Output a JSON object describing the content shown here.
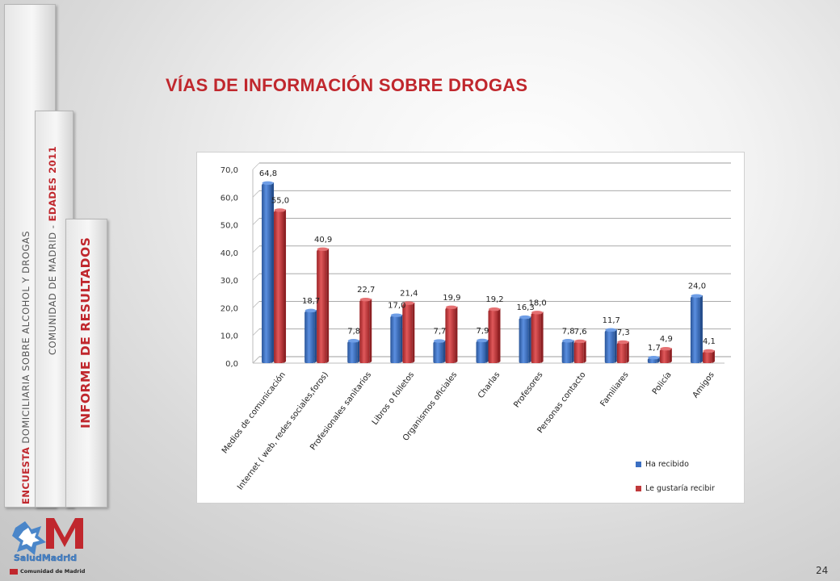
{
  "sidebar": {
    "tab1": {
      "part1": "ENCUESTA",
      "part2": "DOMICILIARIA SOBRE ALCOHOL Y DROGAS"
    },
    "tab2": {
      "part1": "COMUNIDAD DE MADRID - ",
      "part2": "EDADES 2011"
    },
    "tab3": {
      "text": "INFORME DE RESULTADOS"
    }
  },
  "slide_title": "VÍAS DE INFORMACIÓN SOBRE DROGAS",
  "logo": {
    "text": "SaludMadrid",
    "subtitle": "Comunidad de Madrid"
  },
  "page_number": "24",
  "colors": {
    "accent": "#c0272d",
    "series1": "#3b6fc2",
    "series2": "#c0393b"
  },
  "chart_data": {
    "type": "bar",
    "title": "",
    "xlabel": "",
    "ylabel": "",
    "ylim": [
      0,
      70
    ],
    "yticks": [
      "0,0",
      "10,0",
      "20,0",
      "30,0",
      "40,0",
      "50,0",
      "60,0",
      "70,0"
    ],
    "grid": true,
    "legend_position": "bottom-right",
    "categories": [
      "Medios de comunicación",
      "Internet ( web, redes sociales,foros)",
      "Profesionales sanitarios",
      "Libros o folletos",
      "Organismos oficiales",
      "Charlas",
      "Profesores",
      "Personas contacto",
      "Familiares",
      "Policía",
      "Amigos"
    ],
    "series": [
      {
        "name": "Ha recibido",
        "values": [
          64.8,
          18.7,
          7.8,
          17.0,
          7.7,
          7.9,
          16.3,
          7.8,
          11.7,
          1.7,
          24.0
        ],
        "labels": [
          "64,8",
          "18,7",
          "7,8",
          "17,0",
          "7,7",
          "7,9",
          "16,3",
          "7,8",
          "11,7",
          "1,7",
          "24,0"
        ]
      },
      {
        "name": "Le gustaría recibir",
        "values": [
          55.0,
          40.9,
          22.7,
          21.4,
          19.9,
          19.2,
          18.0,
          7.6,
          7.3,
          4.9,
          4.1
        ],
        "labels": [
          "55,0",
          "40,9",
          "22,7",
          "21,4",
          "19,9",
          "19,2",
          "18,0",
          "7,6",
          "7,3",
          "4,9",
          "4,1"
        ]
      }
    ]
  }
}
